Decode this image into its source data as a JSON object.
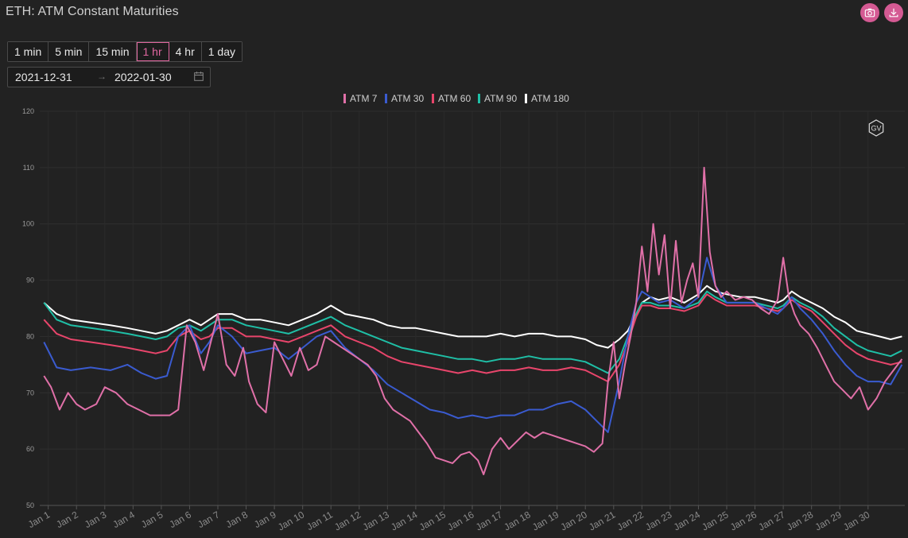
{
  "header": {
    "title": "ETH: ATM Constant Maturities"
  },
  "toolbar": {
    "camera_icon": "camera-icon",
    "download_icon": "download-icon",
    "accent": "#d45a93"
  },
  "intervals": [
    {
      "label": "1 min",
      "active": false
    },
    {
      "label": "5 min",
      "active": false
    },
    {
      "label": "15 min",
      "active": false
    },
    {
      "label": "1 hr",
      "active": true
    },
    {
      "label": "4 hr",
      "active": false
    },
    {
      "label": "1 day",
      "active": false
    }
  ],
  "daterange": {
    "start": "2021-12-31",
    "end": "2022-01-30",
    "separator_icon": "arrow-right-icon",
    "calendar_icon": "calendar-icon"
  },
  "watermark": "GV",
  "chart_data": {
    "type": "line",
    "title": "",
    "xlabel": "",
    "ylabel": "",
    "ylim": [
      50,
      120
    ],
    "yticks": [
      50,
      60,
      70,
      80,
      90,
      100,
      110,
      120
    ],
    "xlim": [
      0.7,
      31.3
    ],
    "x_tick_labels": [
      "Jan 1",
      "Jan 2",
      "Jan 3",
      "Jan 4",
      "Jan 5",
      "Jan 6",
      "Jan 7",
      "Jan 8",
      "Jan 9",
      "Jan 10",
      "Jan 11",
      "Jan 12",
      "Jan 13",
      "Jan 14",
      "Jan 15",
      "Jan 16",
      "Jan 17",
      "Jan 18",
      "Jan 19",
      "Jan 20",
      "Jan 21",
      "Jan 22",
      "Jan 23",
      "Jan 24",
      "Jan 25",
      "Jan 26",
      "Jan 27",
      "Jan 28",
      "Jan 29",
      "Jan 30"
    ],
    "legend_position": "top-center",
    "grid": true,
    "series": [
      {
        "name": "ATM 180",
        "color": "#ffffff",
        "x": [
          0.85,
          1.3,
          1.8,
          2.5,
          3.2,
          3.8,
          4.3,
          4.8,
          5.2,
          5.6,
          6.0,
          6.4,
          6.7,
          7.0,
          7.5,
          8.0,
          8.5,
          9.0,
          9.5,
          10.0,
          10.5,
          11.0,
          11.5,
          12.0,
          12.5,
          13.0,
          13.5,
          14.0,
          14.5,
          15.0,
          15.5,
          16.0,
          16.5,
          17.0,
          17.5,
          18.0,
          18.5,
          19.0,
          19.5,
          20.0,
          20.4,
          20.8,
          21.2,
          21.5,
          21.8,
          22.0,
          22.3,
          22.6,
          23.0,
          23.5,
          24.0,
          24.3,
          24.6,
          25.0,
          25.5,
          26.0,
          26.4,
          26.8,
          27.0,
          27.3,
          27.6,
          28.0,
          28.4,
          28.8,
          29.2,
          29.6,
          30.0,
          30.4,
          30.8,
          31.2
        ],
        "y": [
          86,
          84,
          83,
          82.5,
          82,
          81.5,
          81,
          80.5,
          81,
          82,
          83,
          82,
          83,
          84,
          84,
          83,
          83,
          82.5,
          82,
          83,
          84,
          85.5,
          84,
          83.5,
          83,
          82,
          81.5,
          81.5,
          81,
          80.5,
          80,
          80,
          80,
          80.5,
          80,
          80.5,
          80.5,
          80,
          80,
          79.5,
          78.5,
          78,
          79.5,
          81,
          84,
          86,
          87,
          86.5,
          87,
          86,
          87.5,
          89,
          88,
          87.5,
          87,
          87,
          86.5,
          86,
          86.5,
          88,
          87,
          86,
          85,
          83.5,
          82.5,
          81,
          80.5,
          80,
          79.5,
          80
        ]
      },
      {
        "name": "ATM 90",
        "color": "#1fbfa6",
        "x": [
          0.85,
          1.3,
          1.8,
          2.5,
          3.2,
          3.8,
          4.3,
          4.8,
          5.2,
          5.6,
          6.0,
          6.4,
          6.7,
          7.0,
          7.5,
          8.0,
          8.5,
          9.0,
          9.5,
          10.0,
          10.5,
          11.0,
          11.5,
          12.0,
          12.5,
          13.0,
          13.5,
          14.0,
          14.5,
          15.0,
          15.5,
          16.0,
          16.5,
          17.0,
          17.5,
          18.0,
          18.5,
          19.0,
          19.5,
          20.0,
          20.4,
          20.8,
          21.2,
          21.5,
          21.8,
          22.0,
          22.3,
          22.6,
          23.0,
          23.5,
          24.0,
          24.3,
          24.6,
          25.0,
          25.5,
          26.0,
          26.4,
          26.8,
          27.0,
          27.3,
          27.6,
          28.0,
          28.4,
          28.8,
          29.2,
          29.6,
          30.0,
          30.4,
          30.8,
          31.2
        ],
        "y": [
          86,
          83,
          82,
          81.5,
          81,
          80.5,
          80,
          79.5,
          80,
          81.5,
          82,
          81,
          82,
          83,
          83,
          82,
          81.5,
          81,
          80.5,
          81.5,
          82.5,
          83.5,
          82,
          81,
          80,
          79,
          78,
          77.5,
          77,
          76.5,
          76,
          76,
          75.5,
          76,
          76,
          76.5,
          76,
          76,
          76,
          75.5,
          74.5,
          73.5,
          76,
          80,
          84,
          86,
          86,
          85.5,
          85.5,
          85,
          86,
          88,
          87,
          86,
          86,
          86,
          85.5,
          85,
          85.5,
          87,
          86,
          85,
          83.5,
          81.5,
          80,
          78.5,
          77.5,
          77,
          76.5,
          77.5
        ]
      },
      {
        "name": "ATM 60",
        "color": "#e8456b",
        "x": [
          0.85,
          1.3,
          1.8,
          2.5,
          3.2,
          3.8,
          4.3,
          4.8,
          5.2,
          5.6,
          6.0,
          6.4,
          6.7,
          7.0,
          7.5,
          8.0,
          8.5,
          9.0,
          9.5,
          10.0,
          10.5,
          11.0,
          11.5,
          12.0,
          12.5,
          13.0,
          13.5,
          14.0,
          14.5,
          15.0,
          15.5,
          16.0,
          16.5,
          17.0,
          17.5,
          18.0,
          18.5,
          19.0,
          19.5,
          20.0,
          20.4,
          20.8,
          21.2,
          21.5,
          21.8,
          22.0,
          22.3,
          22.6,
          23.0,
          23.5,
          24.0,
          24.3,
          24.6,
          25.0,
          25.5,
          26.0,
          26.4,
          26.8,
          27.0,
          27.3,
          27.6,
          28.0,
          28.4,
          28.8,
          29.2,
          29.6,
          30.0,
          30.4,
          30.8,
          31.2
        ],
        "y": [
          83,
          80.5,
          79.5,
          79,
          78.5,
          78,
          77.5,
          77,
          77.5,
          80,
          81,
          79.5,
          80,
          81.5,
          81.5,
          80,
          80,
          79.5,
          79,
          80,
          81,
          82,
          80,
          79,
          78,
          76.5,
          75.5,
          75,
          74.5,
          74,
          73.5,
          74,
          73.5,
          74,
          74,
          74.5,
          74,
          74,
          74.5,
          74,
          73,
          72,
          75,
          79,
          83.5,
          85.5,
          85.5,
          85,
          85,
          84.5,
          85.5,
          87.5,
          86.5,
          85.5,
          85.5,
          85.5,
          85,
          84.5,
          85,
          86.5,
          85.5,
          84.5,
          82.5,
          80.5,
          78.5,
          77,
          76,
          75.5,
          75,
          75.5
        ]
      },
      {
        "name": "ATM 30",
        "color": "#3a5bd0",
        "x": [
          0.85,
          1.3,
          1.8,
          2.5,
          3.2,
          3.8,
          4.3,
          4.8,
          5.2,
          5.6,
          6.0,
          6.4,
          6.7,
          7.0,
          7.5,
          8.0,
          8.5,
          9.0,
          9.5,
          10.0,
          10.5,
          11.0,
          11.5,
          12.0,
          12.5,
          13.0,
          13.5,
          14.0,
          14.5,
          15.0,
          15.5,
          16.0,
          16.5,
          17.0,
          17.5,
          18.0,
          18.5,
          19.0,
          19.5,
          20.0,
          20.4,
          20.8,
          21.2,
          21.5,
          21.8,
          22.0,
          22.3,
          22.6,
          23.0,
          23.5,
          24.0,
          24.3,
          24.6,
          25.0,
          25.5,
          26.0,
          26.4,
          26.8,
          27.0,
          27.3,
          27.6,
          28.0,
          28.4,
          28.8,
          29.2,
          29.6,
          30.0,
          30.4,
          30.8,
          31.2
        ],
        "y": [
          79,
          74.5,
          74,
          74.5,
          74,
          75,
          73.5,
          72.5,
          73,
          80,
          82,
          77,
          79,
          82,
          80,
          77,
          77.5,
          78,
          76,
          78,
          80,
          81,
          78,
          76,
          74,
          71.5,
          70,
          68.5,
          67,
          66.5,
          65.5,
          66,
          65.5,
          66,
          66,
          67,
          67,
          68,
          68.5,
          67,
          65,
          63,
          72,
          80,
          86,
          88,
          87,
          86,
          86.5,
          85,
          87,
          94,
          89,
          86,
          86,
          86,
          85,
          84,
          85,
          87,
          85,
          83,
          80.5,
          77.5,
          75,
          73,
          72,
          72,
          71.5,
          75
        ]
      },
      {
        "name": "ATM 7",
        "color": "#e070a8",
        "x": [
          0.85,
          1.1,
          1.4,
          1.7,
          2.0,
          2.3,
          2.7,
          3.0,
          3.4,
          3.8,
          4.2,
          4.6,
          5.0,
          5.3,
          5.6,
          5.9,
          6.2,
          6.5,
          6.8,
          7.0,
          7.3,
          7.6,
          7.9,
          8.1,
          8.4,
          8.7,
          9.0,
          9.3,
          9.6,
          9.9,
          10.2,
          10.5,
          10.8,
          11.1,
          11.4,
          11.7,
          12.0,
          12.3,
          12.6,
          12.9,
          13.2,
          13.5,
          13.8,
          14.1,
          14.4,
          14.7,
          15.0,
          15.3,
          15.6,
          15.9,
          16.2,
          16.4,
          16.7,
          17.0,
          17.3,
          17.6,
          17.9,
          18.2,
          18.5,
          18.8,
          19.1,
          19.4,
          19.7,
          20.0,
          20.3,
          20.6,
          20.8,
          21.0,
          21.2,
          21.4,
          21.6,
          21.8,
          22.0,
          22.2,
          22.4,
          22.6,
          22.8,
          23.0,
          23.2,
          23.4,
          23.6,
          23.8,
          24.0,
          24.2,
          24.4,
          24.6,
          24.8,
          25.0,
          25.3,
          25.6,
          25.9,
          26.2,
          26.5,
          26.8,
          27.0,
          27.2,
          27.4,
          27.6,
          27.9,
          28.2,
          28.5,
          28.8,
          29.1,
          29.4,
          29.7,
          30.0,
          30.3,
          30.6,
          30.9,
          31.2
        ],
        "y": [
          73,
          71,
          67,
          70,
          68,
          67,
          68,
          71,
          70,
          68,
          67,
          66,
          66,
          66,
          67,
          82,
          79,
          74,
          80,
          84,
          75,
          73,
          78,
          72,
          68,
          66.5,
          79,
          76,
          73,
          78,
          74,
          75,
          80,
          79,
          78,
          77,
          76,
          75,
          73,
          69,
          67,
          66,
          65,
          63,
          61,
          58.5,
          58,
          57.5,
          59,
          59.5,
          58,
          55.5,
          60,
          62,
          60,
          61.5,
          63,
          62,
          63,
          62.5,
          62,
          61.5,
          61,
          60.5,
          59.5,
          61,
          72,
          79,
          69,
          75,
          80,
          86,
          96,
          88,
          100,
          91,
          98,
          85,
          97,
          86,
          90,
          93,
          87,
          110,
          95,
          89,
          87,
          88,
          86.5,
          87,
          86.5,
          85,
          84,
          86.5,
          94,
          87,
          84,
          82,
          80.5,
          78,
          75,
          72,
          70.5,
          69,
          71,
          67,
          69,
          72,
          74,
          76
        ]
      }
    ]
  }
}
